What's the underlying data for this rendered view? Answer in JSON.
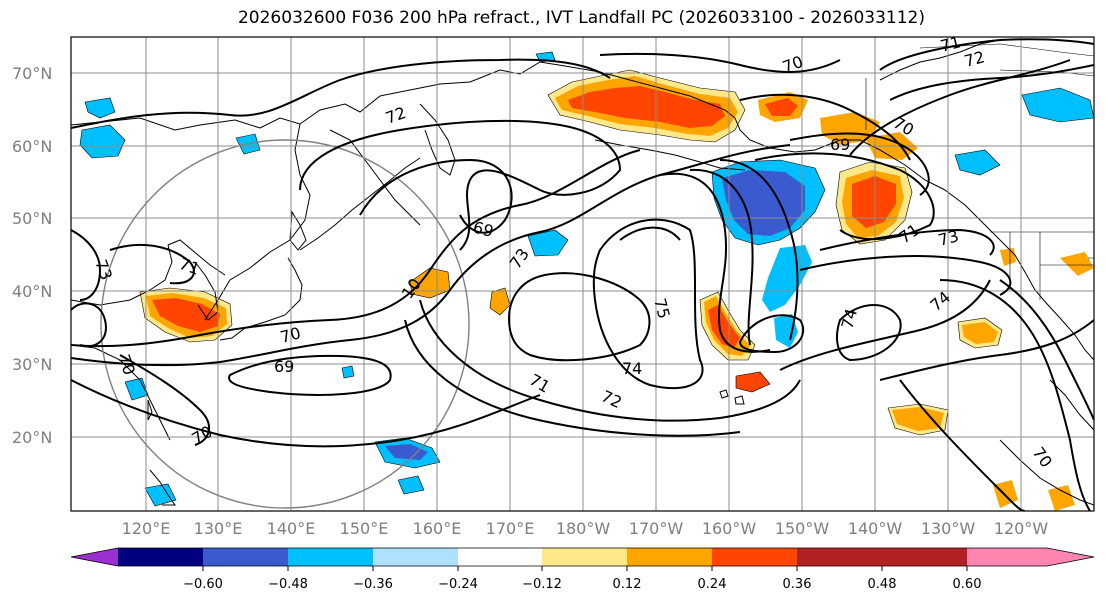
{
  "title": "2026032600 F036 200 hPa refract., IVT Landfall PC (2026033100 - 2026033112)",
  "lat_labels": [
    "70°N",
    "60°N",
    "50°N",
    "40°N",
    "30°N",
    "20°N"
  ],
  "lon_labels": [
    "120°E",
    "130°E",
    "140°E",
    "150°E",
    "160°E",
    "170°E",
    "180°W",
    "170°W",
    "160°W",
    "150°W",
    "140°W",
    "130°W",
    "120°W"
  ],
  "contour_labels": [
    "71",
    "70",
    "72",
    "69",
    "70",
    "73",
    "71",
    "73",
    "69",
    "10",
    "70",
    "75",
    "74",
    "71",
    "72",
    "74",
    "74",
    "71",
    "73",
    "70",
    "69",
    "70",
    "70",
    "72",
    "70"
  ],
  "colorbar": {
    "ticks": [
      "−0.60",
      "−0.48",
      "−0.36",
      "−0.24",
      "−0.12",
      "0.12",
      "0.24",
      "0.36",
      "0.48",
      "0.60"
    ],
    "colors": [
      "#9b30d0",
      "#000080",
      "#3a5ad0",
      "#00bfff",
      "#aee0ff",
      "#ffffff",
      "#ffe88a",
      "#ffa500",
      "#ff4500",
      "#b22222",
      "#ff85b0"
    ]
  },
  "palette": {
    "blue_light": "#aee0ff",
    "blue_mid": "#00bfff",
    "blue_dark": "#3a5ad0",
    "yellow": "#ffe88a",
    "orange": "#ffa500",
    "red_orange": "#ff4500"
  }
}
